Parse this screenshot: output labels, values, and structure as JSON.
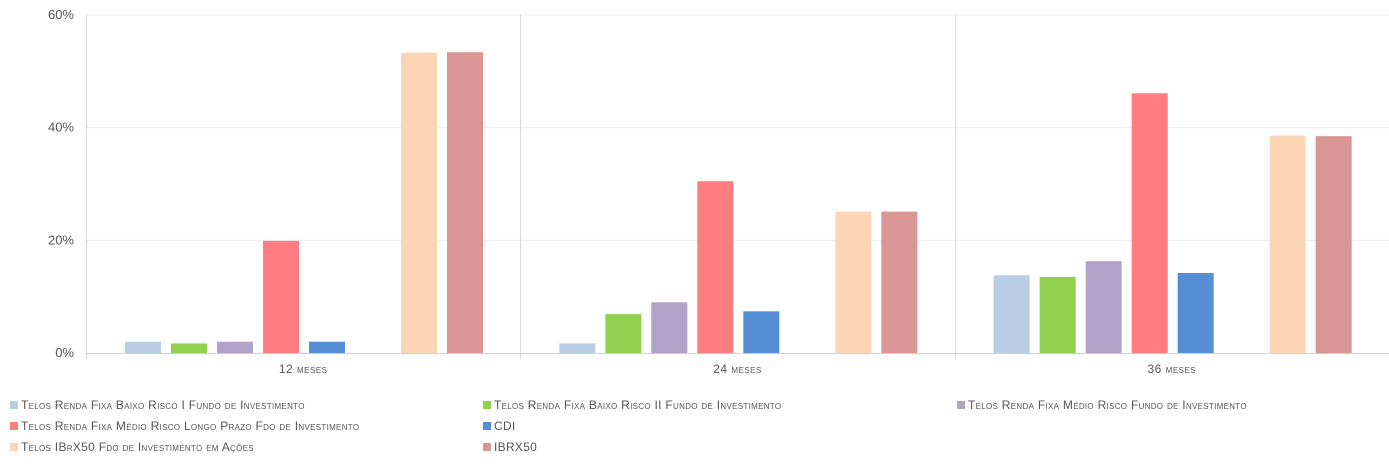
{
  "chart_data": {
    "type": "bar",
    "categories": [
      "12 meses",
      "24 meses",
      "36 meses"
    ],
    "y_ticks": [
      "0%",
      "20%",
      "40%",
      "60%"
    ],
    "ylim": [
      0,
      60
    ],
    "unit": "%",
    "series": [
      {
        "name": "Telos Renda Fixa Baixo Risco I Fundo de Investimento",
        "color": "#b9cde5",
        "values": [
          2.0,
          1.7,
          13.8
        ]
      },
      {
        "name": "Telos Renda Fixa Baixo Risco II Fundo de Investimento",
        "color": "#92d050",
        "values": [
          1.7,
          6.9,
          13.5
        ]
      },
      {
        "name": "Telos Renda Fixa Médio Risco Fundo de Investimento",
        "color": "#b3a2c7",
        "values": [
          2.0,
          9.0,
          16.3
        ]
      },
      {
        "name": "Telos Renda Fixa Médio Risco Longo Prazo Fdo de Investimento",
        "color": "#ff7c80",
        "values": [
          19.9,
          30.5,
          46.1
        ]
      },
      {
        "name": "CDI",
        "color": "#558ed5",
        "values": [
          2.0,
          7.4,
          14.2
        ]
      },
      {
        "name": "Telos IBrX50 Fdo de Investimento em Ações",
        "color": "#fcd5b5",
        "values": [
          53.3,
          25.1,
          38.6
        ]
      },
      {
        "name": "IBRX50",
        "color": "#d99694",
        "values": [
          53.4,
          25.1,
          38.5
        ]
      }
    ],
    "grid": true,
    "legend_position": "bottom"
  }
}
